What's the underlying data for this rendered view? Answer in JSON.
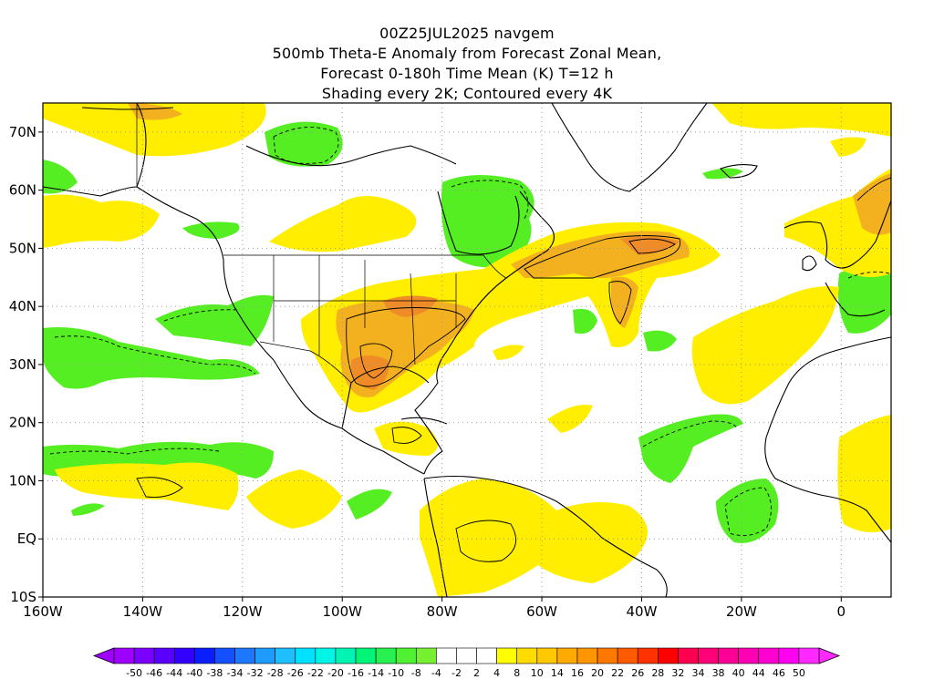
{
  "header": {
    "lines": [
      "00Z25JUL2025 navgem",
      "500mb Theta-E Anomaly from Forecast Zonal Mean,",
      "Forecast 0-180h Time Mean (K) T=12 h",
      "Shading every 2K; Contoured every 4K"
    ]
  },
  "map": {
    "lat_labels": [
      {
        "text": "70N",
        "value": 70
      },
      {
        "text": "60N",
        "value": 60
      },
      {
        "text": "50N",
        "value": 50
      },
      {
        "text": "40N",
        "value": 40
      },
      {
        "text": "30N",
        "value": 30
      },
      {
        "text": "20N",
        "value": 20
      },
      {
        "text": "10N",
        "value": 10
      },
      {
        "text": "EQ",
        "value": 0
      },
      {
        "text": "10S",
        "value": -10
      }
    ],
    "lon_labels": [
      {
        "text": "160W",
        "value": -160
      },
      {
        "text": "140W",
        "value": -140
      },
      {
        "text": "120W",
        "value": -120
      },
      {
        "text": "100W",
        "value": -100
      },
      {
        "text": "80W",
        "value": -80
      },
      {
        "text": "60W",
        "value": -60
      },
      {
        "text": "40W",
        "value": -40
      },
      {
        "text": "20W",
        "value": -20
      },
      {
        "text": "0",
        "value": 0
      }
    ],
    "lon_range": [
      -160,
      10
    ],
    "lat_range": [
      -10,
      75
    ],
    "grid": true
  },
  "colorbar": {
    "labels": [
      "-50",
      "-46",
      "-44",
      "-40",
      "-38",
      "-34",
      "-32",
      "-28",
      "-26",
      "-22",
      "-20",
      "-16",
      "-14",
      "-10",
      "-8",
      "-4",
      "-2",
      "2",
      "4",
      "8",
      "10",
      "14",
      "16",
      "20",
      "22",
      "26",
      "28",
      "32",
      "34",
      "38",
      "40",
      "44",
      "46",
      "50"
    ],
    "colors": [
      "#9e00ff",
      "#7b00ff",
      "#5a00ff",
      "#3200ff",
      "#0a1eff",
      "#1450ff",
      "#1e78ff",
      "#1e9bff",
      "#1ebeff",
      "#00e1ff",
      "#00f5e6",
      "#00f5b4",
      "#00f578",
      "#28f050",
      "#50f032",
      "#78f032",
      "#ffffff",
      "#ffffff",
      "#ffffff",
      "#ffff00",
      "#ffdc00",
      "#ffc800",
      "#ffaa00",
      "#ff9600",
      "#ff7800",
      "#ff5a00",
      "#ff3200",
      "#ff0000",
      "#ff0050",
      "#ff0078",
      "#ff0096",
      "#ff00b4",
      "#ff00d2",
      "#ff00f0",
      "#ff28ff"
    ],
    "arrow_left_color": "#9e00ff",
    "arrow_right_color": "#ff28ff"
  },
  "palette": {
    "green": "#55ee22",
    "yellow": "#ffee00",
    "orange": "#f3b120",
    "dark_orange": "#f08c28"
  }
}
